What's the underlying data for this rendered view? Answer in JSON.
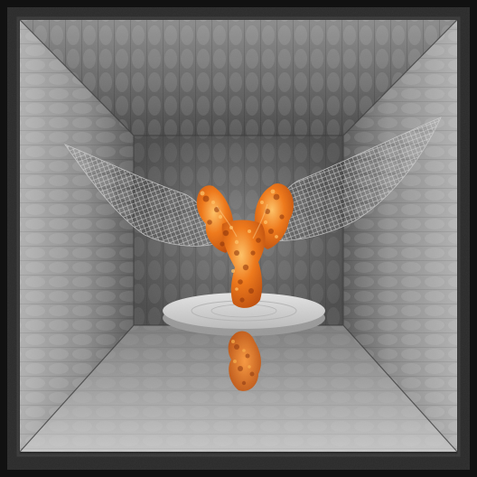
{
  "scene": {
    "subject": "orange-molecular-surface",
    "environment": "padded-gray-room",
    "colors": {
      "background": "#111111",
      "frame_dark": "#2a2a2a",
      "wall_light": "#a3a3a3",
      "wall_mid": "#7a7a7a",
      "wall_dark": "#505050",
      "back_wall": "#6e6e6e",
      "floor_light": "#bdbdbd",
      "floor_dark": "#8e8e8e",
      "platform_top": "#d9d9d9",
      "platform_side": "#a8a8a8",
      "mesh_line": "#dedede",
      "molecule_bright": "#ffb347",
      "molecule_main": "#f07818",
      "molecule_deep": "#c24a08",
      "molecule_shadow": "#8a2f05"
    }
  }
}
